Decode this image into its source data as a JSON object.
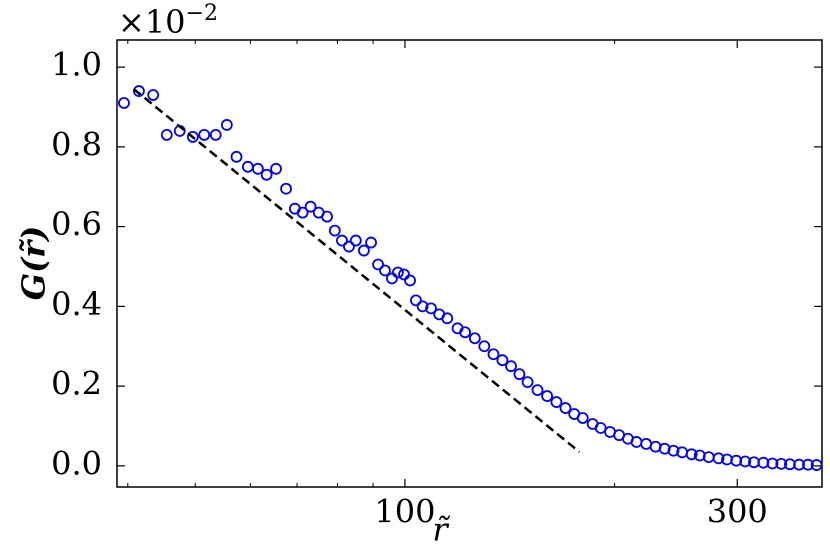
{
  "chart_data": {
    "type": "scatter",
    "xlabel": "r̃",
    "ylabel": "G(r̃)",
    "y_scale": {
      "base": "×10",
      "exponent": "−2"
    },
    "xscale": "log",
    "xlim": [
      38.6,
      397
    ],
    "xticks": [
      100,
      300
    ],
    "xminorticks": [
      40,
      50,
      60,
      70,
      80,
      90,
      200
    ],
    "ylim": [
      -0.053,
      1.068
    ],
    "yticks": [
      {
        "value": 0,
        "label": "0.0"
      },
      0.2,
      0.4,
      0.6,
      0.8,
      {
        "value": 1,
        "label": "1.0"
      }
    ],
    "grid": false,
    "series": [
      {
        "color": "#0000ff",
        "marker": "circle",
        "x": [
          39.5,
          41.5,
          43.5,
          45.5,
          47.5,
          49.6,
          51.5,
          53.5,
          55.5,
          57.3,
          59.5,
          61.5,
          63.3,
          65.3,
          67.5,
          69.5,
          71.3,
          73.2,
          75.2,
          77.3,
          79.3,
          81.2,
          83.1,
          85,
          87.3,
          89.4,
          91.5,
          93.6,
          95.8,
          97.7,
          99.7,
          101.7,
          103.7,
          106,
          109,
          112,
          115,
          119,
          122,
          126,
          130,
          134,
          138,
          142,
          146,
          150,
          155,
          160,
          165,
          170,
          175,
          180,
          186,
          191,
          197,
          203,
          209,
          215,
          222,
          229,
          236,
          243,
          250,
          258,
          265,
          273,
          282,
          290,
          299,
          308,
          317,
          327,
          337,
          347,
          357,
          368,
          379,
          390
        ],
        "values": [
          0.91,
          0.94,
          0.93,
          0.83,
          0.84,
          0.825,
          0.83,
          0.83,
          0.855,
          0.775,
          0.75,
          0.745,
          0.73,
          0.745,
          0.695,
          0.645,
          0.635,
          0.65,
          0.635,
          0.625,
          0.59,
          0.565,
          0.55,
          0.565,
          0.54,
          0.56,
          0.505,
          0.49,
          0.47,
          0.485,
          0.48,
          0.465,
          0.415,
          0.4,
          0.395,
          0.38,
          0.37,
          0.345,
          0.335,
          0.32,
          0.3,
          0.28,
          0.265,
          0.25,
          0.23,
          0.21,
          0.19,
          0.175,
          0.16,
          0.145,
          0.13,
          0.12,
          0.105,
          0.095,
          0.085,
          0.077,
          0.068,
          0.06,
          0.055,
          0.048,
          0.043,
          0.038,
          0.034,
          0.029,
          0.026,
          0.022,
          0.019,
          0.016,
          0.013,
          0.011,
          0.009,
          0.008,
          0.006,
          0.005,
          0.004,
          0.003,
          0.003,
          0.002
        ]
      },
      {
        "color": "#000000",
        "style": "dashed",
        "x": [
          40.8,
          178
        ],
        "values": [
          0.945,
          0.035
        ]
      }
    ]
  }
}
